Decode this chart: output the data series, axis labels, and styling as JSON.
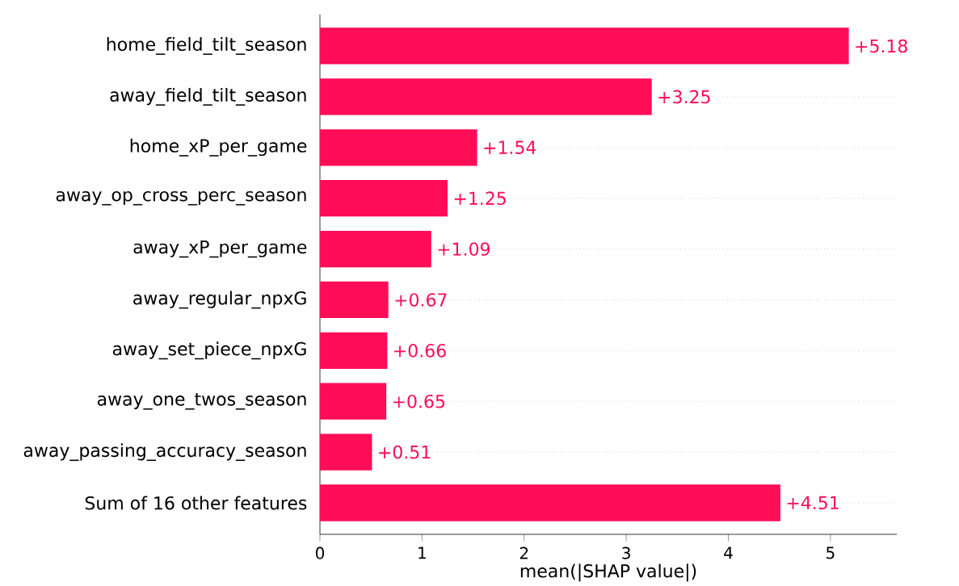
{
  "chart_data": {
    "type": "bar",
    "orientation": "horizontal",
    "categories": [
      "home_field_tilt_season",
      "away_field_tilt_season",
      "home_xP_per_game",
      "away_op_cross_perc_season",
      "away_xP_per_game",
      "away_regular_npxG",
      "away_set_piece_npxG",
      "away_one_twos_season",
      "away_passing_accuracy_season",
      "Sum of 16 other features"
    ],
    "values": [
      5.18,
      3.25,
      1.54,
      1.25,
      1.09,
      0.67,
      0.66,
      0.65,
      0.51,
      4.51
    ],
    "value_labels": [
      "+5.18",
      "+3.25",
      "+1.54",
      "+1.25",
      "+1.09",
      "+0.67",
      "+0.66",
      "+0.65",
      "+0.51",
      "+4.51"
    ],
    "color": "#ff0d57",
    "xlim": [
      0,
      5.65
    ],
    "xticks": [
      0,
      1,
      2,
      3,
      4,
      5
    ],
    "xlabel": "mean(|SHAP value|)",
    "grid": "y"
  }
}
